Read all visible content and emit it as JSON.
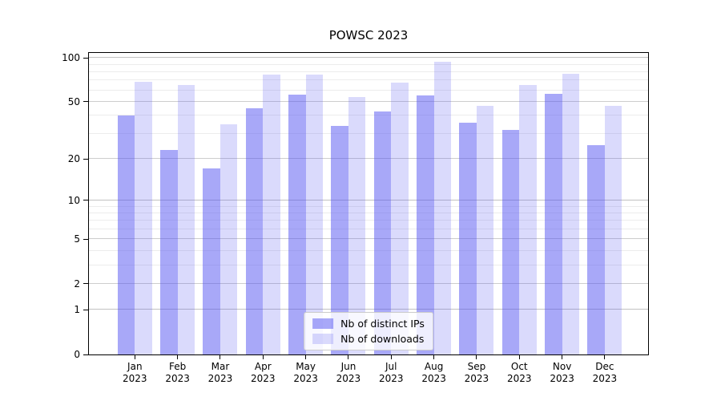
{
  "title": "POWSC 2023",
  "chart_data": {
    "type": "bar",
    "title": "POWSC 2023",
    "categories": [
      "Jan 2023",
      "Feb 2023",
      "Mar 2023",
      "Apr 2023",
      "May 2023",
      "Jun 2023",
      "Jul 2023",
      "Aug 2023",
      "Sep 2023",
      "Oct 2023",
      "Nov 2023",
      "Dec 2023"
    ],
    "series": [
      {
        "name": "Nb of distinct IPs",
        "color": "#a9a9f6",
        "fill": "rgba(85,85,242,0.51)",
        "values": [
          40,
          23,
          17,
          45,
          56,
          34,
          43,
          55,
          36,
          32,
          57,
          25
        ]
      },
      {
        "name": "Nb of downloads",
        "color": "#d9d9f8",
        "fill": "rgba(85,85,242,0.22)",
        "values": [
          69,
          65,
          35,
          77,
          77,
          54,
          68,
          94,
          47,
          65,
          78,
          47
        ]
      }
    ],
    "yscale": "log1p",
    "ylim": [
      0,
      112
    ],
    "y_tick_labels": [
      0,
      1,
      2,
      5,
      10,
      20,
      50,
      100
    ],
    "y_major_gridlines": [
      2,
      5,
      20,
      50
    ],
    "y_dark_gridlines": [
      1,
      10,
      100
    ],
    "y_minor_gridlines": [
      3,
      4,
      6,
      7,
      8,
      9,
      30,
      40,
      60,
      70,
      80,
      90
    ],
    "xlabel": "",
    "ylabel": "",
    "grid": true,
    "legend_position": "lower center"
  },
  "colors": {
    "spine": "#000000",
    "grid_major": "#cdcdcd",
    "grid_minor": "#ececec",
    "legend_border": "#cccccc",
    "legend_background": "rgba(255,255,255,0.8)"
  }
}
